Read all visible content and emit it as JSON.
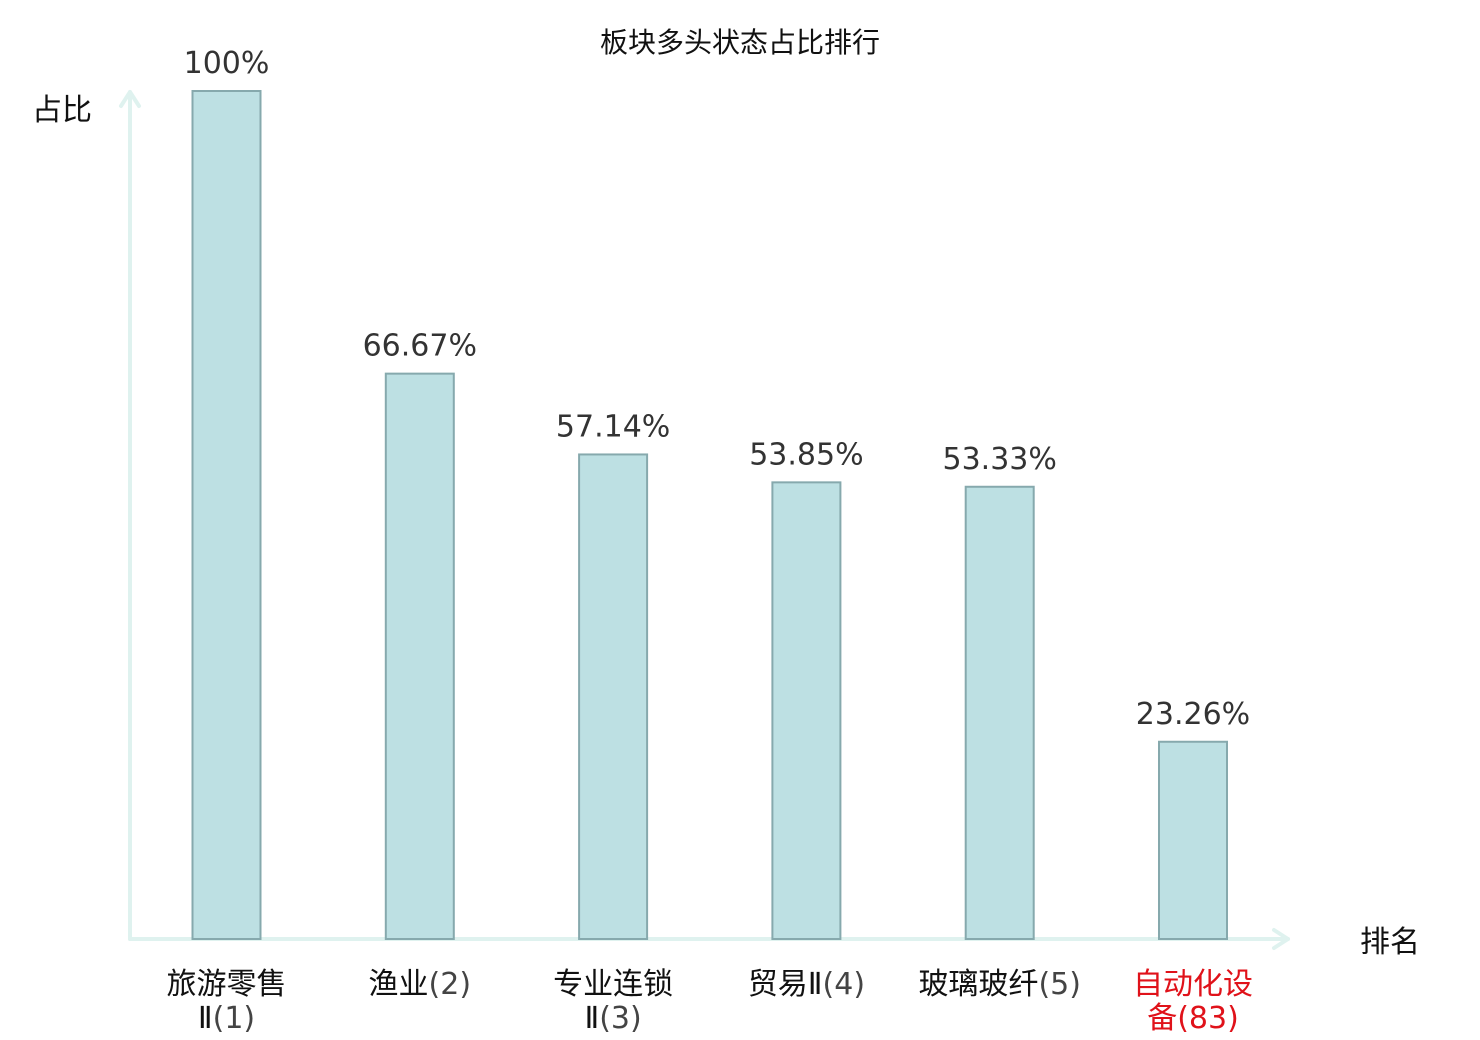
{
  "chart_data": {
    "type": "bar",
    "title": "板块多头状态占比排行",
    "ylabel": "占比",
    "xlabel": "排名",
    "ylim": [
      0,
      100
    ],
    "grid": false,
    "categories": [
      {
        "name_lines": [
          "旅游零售",
          "Ⅱ"
        ],
        "rank": "(1)",
        "value": 100,
        "label": "100%",
        "highlight": false
      },
      {
        "name_lines": [
          "渔业"
        ],
        "rank": "(2)",
        "value": 66.67,
        "label": "66.67%",
        "highlight": false
      },
      {
        "name_lines": [
          "专业连锁",
          "Ⅱ"
        ],
        "rank": "(3)",
        "value": 57.14,
        "label": "57.14%",
        "highlight": false
      },
      {
        "name_lines": [
          "贸易Ⅱ"
        ],
        "rank": "(4)",
        "value": 53.85,
        "label": "53.85%",
        "highlight": false
      },
      {
        "name_lines": [
          "玻璃玻纤"
        ],
        "rank": "(5)",
        "value": 53.33,
        "label": "53.33%",
        "highlight": false
      },
      {
        "name_lines": [
          "自动化设",
          "备"
        ],
        "rank": "(83)",
        "value": 23.26,
        "label": "23.26%",
        "highlight": true
      }
    ],
    "colors": {
      "bar_fill": "#bde0e3",
      "bar_stroke": "#86a9ad",
      "axis": "#dff2ef",
      "highlight_text": "#e0121a"
    }
  }
}
